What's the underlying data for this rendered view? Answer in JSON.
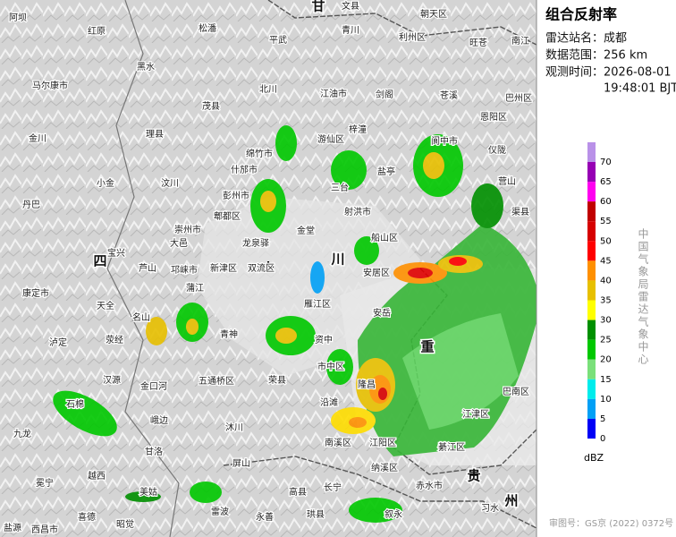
{
  "panel": {
    "title": "组合反射率",
    "station_label": "雷达站名：",
    "station": "成都",
    "range_label": "数据范围：",
    "range": "256 km",
    "time_label": "观测时间：",
    "date": "2026-08-01",
    "time": "19:48:01 BJT"
  },
  "legend": {
    "levels": [
      {
        "value": 70,
        "color": "#b991e8"
      },
      {
        "value": 65,
        "color": "#9600b4"
      },
      {
        "value": 60,
        "color": "#ff00f0"
      },
      {
        "value": 55,
        "color": "#c00000"
      },
      {
        "value": 50,
        "color": "#d60000"
      },
      {
        "value": 45,
        "color": "#ff0000"
      },
      {
        "value": 40,
        "color": "#ff9000"
      },
      {
        "value": 35,
        "color": "#e7c000"
      },
      {
        "value": 30,
        "color": "#ffff00"
      },
      {
        "value": 25,
        "color": "#009000"
      },
      {
        "value": 20,
        "color": "#00c800"
      },
      {
        "value": 15,
        "color": "#7ae07a"
      },
      {
        "value": 10,
        "color": "#00ecec"
      },
      {
        "value": 5,
        "color": "#01a0f6"
      },
      {
        "value": 0,
        "color": "#0000f6"
      }
    ],
    "unit": "dBZ"
  },
  "credit": "中国气象局雷达气象中心",
  "approval": "审图号：GS京 (2022) 0372号",
  "map": {
    "regions": [
      "四",
      "川",
      "重",
      "贵",
      "州",
      "甘"
    ],
    "places": [
      "阿坝",
      "红原",
      "松潘",
      "平武",
      "青川",
      "文县",
      "朝天区",
      "利州区",
      "旺苍",
      "南江",
      "马尔康市",
      "黑水",
      "北川",
      "江油市",
      "剑阁",
      "苍溪",
      "巴州区",
      "茂县",
      "理县",
      "梓潼",
      "恩阳区",
      "金川",
      "游仙区",
      "阆中市",
      "仪陇",
      "汶川",
      "绵竹市",
      "什邡市",
      "彭州市",
      "小金",
      "三台",
      "盐亭",
      "营山",
      "丹巴",
      "郫都区",
      "射洪市",
      "渠县",
      "大邑",
      "崇州市",
      "龙泉驿",
      "金堂",
      "船山区",
      "宝兴",
      "芦山",
      "邛崃市",
      "新津区",
      "双流区",
      "安居区",
      "康定市",
      "天全",
      "名山",
      "蒲江",
      "雁江区",
      "安岳",
      "泸定",
      "荥经",
      "青神",
      "资中",
      "汉源",
      "石棉",
      "金口河",
      "五通桥区",
      "荣县",
      "市中区",
      "隆昌",
      "峨边",
      "沐川",
      "沿滩",
      "九龙",
      "南溪区",
      "江阳区",
      "甘洛",
      "屏山",
      "纳溪区",
      "綦江区",
      "江津区",
      "巴南区",
      "越西",
      "冕宁",
      "美姑",
      "高县",
      "长宁",
      "赤水市",
      "雷波",
      "习水",
      "喜德",
      "昭觉",
      "西昌市",
      "永善",
      "珙县",
      "叙永",
      "盐源"
    ]
  }
}
